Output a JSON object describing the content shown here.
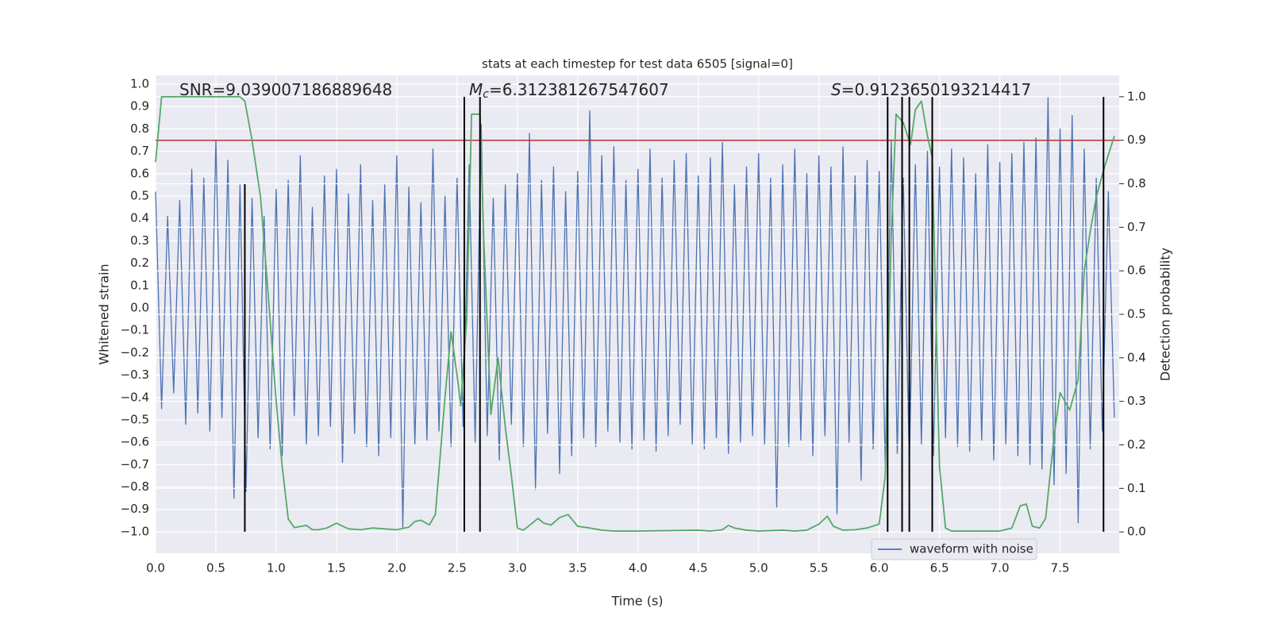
{
  "chart_data": {
    "type": "line",
    "title": "stats at each timestep for test data 6505 [signal=0]",
    "xlabel": "Time (s)",
    "ylabel": "Whitened strain",
    "y2label": "Detection probability",
    "xlim": [
      0,
      7.99
    ],
    "ylim": [
      -1.096,
      1.039
    ],
    "y2lim": [
      -0.049,
      1.049
    ],
    "xticks": [
      {
        "value": 0,
        "label": "0.0"
      },
      0.5,
      {
        "value": 1,
        "label": "1.0"
      },
      1.5,
      {
        "value": 2,
        "label": "2.0"
      },
      2.5,
      {
        "value": 3,
        "label": "3.0"
      },
      3.5,
      {
        "value": 4,
        "label": "4.0"
      },
      4.5,
      {
        "value": 5,
        "label": "5.0"
      },
      5.5,
      {
        "value": 6,
        "label": "6.0"
      },
      6.5,
      {
        "value": 7,
        "label": "7.0"
      },
      7.5
    ],
    "yticks": [
      {
        "value": -1,
        "label": "−1.0"
      },
      {
        "value": -0.9,
        "label": "−0.9"
      },
      {
        "value": -0.8,
        "label": "−0.8"
      },
      {
        "value": -0.7,
        "label": "−0.7"
      },
      {
        "value": -0.6,
        "label": "−0.6"
      },
      {
        "value": -0.5,
        "label": "−0.5"
      },
      {
        "value": -0.4,
        "label": "−0.4"
      },
      {
        "value": -0.3,
        "label": "−0.3"
      },
      {
        "value": -0.2,
        "label": "−0.2"
      },
      {
        "value": -0.1,
        "label": "−0.1"
      },
      {
        "value": 0,
        "label": "0.0"
      },
      0.1,
      0.2,
      0.3,
      0.4,
      0.5,
      0.6,
      0.7,
      0.8,
      0.9,
      {
        "value": 1,
        "label": "1.0"
      }
    ],
    "y2ticks": [
      {
        "value": 0,
        "label": "0.0"
      },
      0.1,
      0.2,
      0.3,
      0.4,
      0.5,
      0.6,
      0.7,
      0.8,
      0.9,
      {
        "value": 1,
        "label": "1.0"
      }
    ],
    "grid": true,
    "legend": "lower right",
    "series": [
      {
        "name": "waveform with noise",
        "color": "#4c72b0",
        "x": [
          0,
          0.05,
          0.1,
          0.15,
          0.2,
          0.25,
          0.3,
          0.35,
          0.4,
          0.45,
          0.5,
          0.55,
          0.6,
          0.65,
          0.7,
          0.75,
          0.8,
          0.85,
          0.9,
          0.95,
          1,
          1.05,
          1.1,
          1.15,
          1.2,
          1.25,
          1.3,
          1.35,
          1.4,
          1.45,
          1.5,
          1.55,
          1.6,
          1.65,
          1.7,
          1.75,
          1.8,
          1.85,
          1.9,
          1.95,
          2,
          2.05,
          2.1,
          2.15,
          2.2,
          2.25,
          2.3,
          2.35,
          2.4,
          2.45,
          2.5,
          2.55,
          2.6,
          2.65,
          2.7,
          2.75,
          2.8,
          2.85,
          2.9,
          2.95,
          3,
          3.05,
          3.1,
          3.15,
          3.2,
          3.25,
          3.3,
          3.35,
          3.4,
          3.45,
          3.5,
          3.55,
          3.6,
          3.65,
          3.7,
          3.75,
          3.8,
          3.85,
          3.9,
          3.95,
          4,
          4.05,
          4.1,
          4.15,
          4.2,
          4.25,
          4.3,
          4.35,
          4.4,
          4.45,
          4.5,
          4.55,
          4.6,
          4.65,
          4.7,
          4.75,
          4.8,
          4.85,
          4.9,
          4.95,
          5,
          5.05,
          5.1,
          5.15,
          5.2,
          5.25,
          5.3,
          5.35,
          5.4,
          5.45,
          5.5,
          5.55,
          5.6,
          5.65,
          5.7,
          5.75,
          5.8,
          5.85,
          5.9,
          5.95,
          6,
          6.05,
          6.1,
          6.15,
          6.2,
          6.25,
          6.3,
          6.35,
          6.4,
          6.45,
          6.5,
          6.55,
          6.6,
          6.65,
          6.7,
          6.75,
          6.8,
          6.85,
          6.9,
          6.95,
          7,
          7.05,
          7.1,
          7.15,
          7.2,
          7.25,
          7.3,
          7.35,
          7.4,
          7.45,
          7.5,
          7.55,
          7.6,
          7.65,
          7.7,
          7.75,
          7.8,
          7.85,
          7.9,
          7.95
        ],
        "values": [
          0.52,
          -0.45,
          0.41,
          -0.38,
          0.48,
          -0.52,
          0.62,
          -0.47,
          0.58,
          -0.55,
          0.75,
          -0.49,
          0.66,
          -0.85,
          0.55,
          -0.82,
          0.49,
          -0.58,
          0.41,
          -0.63,
          0.53,
          -0.66,
          0.57,
          -0.48,
          0.68,
          -0.61,
          0.45,
          -0.57,
          0.59,
          -0.53,
          0.62,
          -0.69,
          0.51,
          -0.56,
          0.64,
          -0.62,
          0.48,
          -0.66,
          0.55,
          -0.58,
          0.68,
          -0.98,
          0.54,
          -0.61,
          0.47,
          -0.59,
          0.71,
          -0.55,
          0.5,
          -0.62,
          0.58,
          -0.53,
          0.64,
          -0.6,
          0.82,
          -0.57,
          0.49,
          -0.68,
          0.55,
          -0.52,
          0.6,
          -0.62,
          0.78,
          -0.81,
          0.57,
          -0.56,
          0.63,
          -0.74,
          0.52,
          -0.66,
          0.61,
          -0.58,
          0.88,
          -0.62,
          0.68,
          -0.55,
          0.72,
          -0.6,
          0.57,
          -0.63,
          0.62,
          -0.59,
          0.71,
          -0.64,
          0.58,
          -0.57,
          0.66,
          -0.52,
          0.69,
          -0.61,
          0.59,
          -0.63,
          0.67,
          -0.58,
          0.74,
          -0.65,
          0.55,
          -0.6,
          0.63,
          -0.57,
          0.69,
          -0.61,
          0.58,
          -0.89,
          0.64,
          -0.62,
          0.71,
          -0.59,
          0.6,
          -0.66,
          0.68,
          -0.57,
          0.63,
          -0.92,
          0.72,
          -0.6,
          0.59,
          -0.77,
          0.66,
          -0.63,
          0.61,
          -0.7,
          0.75,
          -0.65,
          0.58,
          -0.69,
          0.64,
          -0.61,
          0.7,
          -0.66,
          0.63,
          -0.58,
          0.71,
          -0.62,
          0.67,
          -0.64,
          0.6,
          -0.59,
          0.73,
          -0.68,
          0.65,
          -0.61,
          0.69,
          -0.66,
          0.74,
          -0.7,
          0.76,
          -0.72,
          0.94,
          -0.79,
          0.8,
          -0.74,
          0.86,
          -0.96,
          0.71,
          -0.63,
          0.58,
          -0.55,
          0.52,
          -0.49
        ]
      },
      {
        "color": "#55a868",
        "axis": "y2",
        "x": [
          0,
          0.05,
          0.1,
          0.3,
          0.5,
          0.7,
          0.74,
          0.8,
          0.87,
          0.93,
          1,
          1.05,
          1.1,
          1.15,
          1.25,
          1.3,
          1.35,
          1.42,
          1.5,
          1.6,
          1.7,
          1.8,
          1.9,
          2,
          2.1,
          2.15,
          2.2,
          2.27,
          2.32,
          2.4,
          2.45,
          2.5,
          2.53,
          2.58,
          2.62,
          2.69,
          2.72,
          2.78,
          2.84,
          2.9,
          2.95,
          3,
          3.05,
          3.1,
          3.17,
          3.22,
          3.28,
          3.35,
          3.42,
          3.5,
          3.6,
          3.7,
          3.8,
          4,
          4.5,
          4.6,
          4.7,
          4.75,
          4.8,
          4.9,
          5,
          5.2,
          5.3,
          5.4,
          5.5,
          5.57,
          5.62,
          5.7,
          5.8,
          5.9,
          6,
          6.05,
          6.1,
          6.14,
          6.2,
          6.26,
          6.3,
          6.35,
          6.4,
          6.44,
          6.5,
          6.55,
          6.6,
          7,
          7.1,
          7.17,
          7.22,
          7.27,
          7.33,
          7.38,
          7.45,
          7.5,
          7.58,
          7.65,
          7.7,
          7.75,
          7.8,
          7.87,
          7.95
        ],
        "values": [
          0.85,
          1,
          1,
          1,
          1,
          1,
          0.99,
          0.9,
          0.77,
          0.56,
          0.3,
          0.15,
          0.03,
          0.01,
          0.015,
          0.005,
          0.005,
          0.009,
          0.02,
          0.007,
          0.005,
          0.009,
          0.007,
          0.005,
          0.011,
          0.024,
          0.027,
          0.016,
          0.04,
          0.31,
          0.46,
          0.36,
          0.29,
          0.49,
          0.96,
          0.96,
          0.68,
          0.27,
          0.4,
          0.24,
          0.13,
          0.009,
          0.004,
          0.015,
          0.031,
          0.02,
          0.016,
          0.033,
          0.04,
          0.013,
          0.009,
          0.004,
          0.002,
          0.002,
          0.004,
          0.002,
          0.005,
          0.015,
          0.009,
          0.004,
          0.002,
          0.004,
          0.002,
          0.004,
          0.018,
          0.036,
          0.013,
          0.004,
          0.005,
          0.009,
          0.018,
          0.128,
          0.68,
          0.96,
          0.94,
          0.89,
          0.97,
          0.99,
          0.91,
          0.86,
          0.15,
          0.009,
          0.002,
          0.002,
          0.009,
          0.06,
          0.064,
          0.013,
          0.009,
          0.031,
          0.22,
          0.32,
          0.28,
          0.35,
          0.6,
          0.69,
          0.77,
          0.84,
          0.91
        ]
      }
    ],
    "hline": {
      "value": 0.9,
      "axis": "y2",
      "color": "#b83232"
    },
    "vlines": {
      "color": "#000000",
      "ymin": -1,
      "x": [
        0.74,
        2.56,
        2.69,
        6.07,
        6.19,
        6.25,
        6.44,
        7.86
      ],
      "ymax": [
        0.553,
        0.943,
        0.943,
        0.943,
        0.943,
        0.943,
        0.943,
        0.943
      ]
    },
    "annotations": [
      {
        "text": "SNR=9.039007186889648"
      },
      {
        "symbol": "M",
        "sub": "c",
        "text": "=6.312381267547607"
      },
      {
        "symbol": "S",
        "text": "=0.9123650193214417"
      }
    ]
  }
}
